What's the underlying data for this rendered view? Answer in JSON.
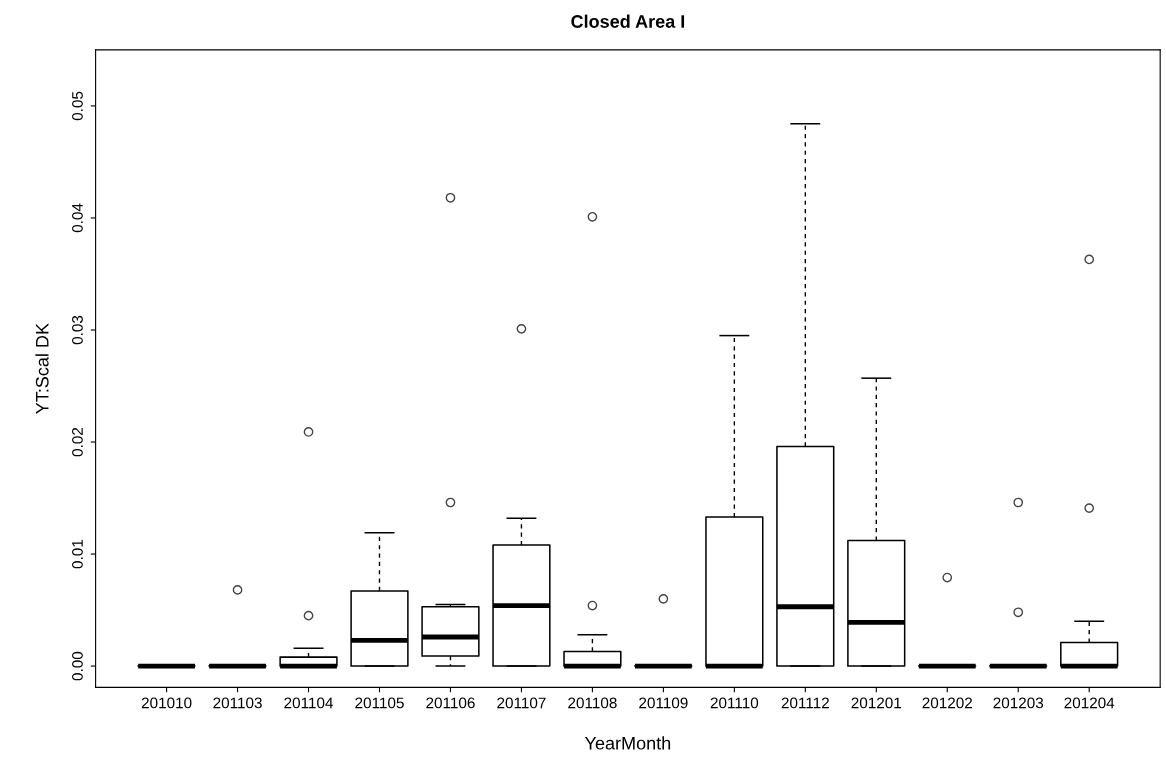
{
  "chart_data": {
    "type": "box",
    "title": "Closed Area I",
    "xlabel": "YearMonth",
    "ylabel": "YT:Scal DK",
    "categories": [
      "201010",
      "201103",
      "201104",
      "201105",
      "201106",
      "201107",
      "201108",
      "201109",
      "201110",
      "201112",
      "201201",
      "201202",
      "201203",
      "201204"
    ],
    "boxes": [
      {
        "low": 0,
        "q1": 0,
        "median": 0,
        "q3": 0,
        "high": 0
      },
      {
        "low": 0,
        "q1": 0,
        "median": 0,
        "q3": 0,
        "high": 0,
        "outliers": [
          0.0068
        ]
      },
      {
        "low": 0,
        "q1": 0,
        "median": 0,
        "q3": 0.0008,
        "high": 0.0016,
        "outliers": [
          0.0045,
          0.0209
        ]
      },
      {
        "low": 0,
        "q1": 0,
        "median": 0.0023,
        "q3": 0.0067,
        "high": 0.0119
      },
      {
        "low": 0,
        "q1": 0.0009,
        "median": 0.0026,
        "q3": 0.0053,
        "high": 0.0055,
        "outliers": [
          0.0146,
          0.0418
        ]
      },
      {
        "low": 0,
        "q1": 0,
        "median": 0.0054,
        "q3": 0.0108,
        "high": 0.0132,
        "outliers": [
          0.0301
        ]
      },
      {
        "low": 0,
        "q1": 0,
        "median": 0,
        "q3": 0.0013,
        "high": 0.0028,
        "outliers": [
          0.0054,
          0.0401
        ]
      },
      {
        "low": 0,
        "q1": 0,
        "median": 0,
        "q3": 0,
        "high": 0,
        "outliers": [
          0.006
        ]
      },
      {
        "low": 0,
        "q1": 0,
        "median": 0,
        "q3": 0.0133,
        "high": 0.0295
      },
      {
        "low": 0,
        "q1": 0,
        "median": 0.0053,
        "q3": 0.0196,
        "high": 0.0484
      },
      {
        "low": 0,
        "q1": 0,
        "median": 0.0039,
        "q3": 0.0112,
        "high": 0.0257
      },
      {
        "low": 0,
        "q1": 0,
        "median": 0,
        "q3": 0,
        "high": 0,
        "outliers": [
          0.0079
        ]
      },
      {
        "low": 0,
        "q1": 0,
        "median": 0,
        "q3": 0,
        "high": 0,
        "outliers": [
          0.0048,
          0.0146
        ]
      },
      {
        "low": 0,
        "q1": 0,
        "median": 0,
        "q3": 0.0021,
        "high": 0.004,
        "outliers": [
          0.0141,
          0.0363
        ]
      }
    ],
    "ylim": [
      -0.0019,
      0.055
    ],
    "yticks": [
      {
        "value": 0,
        "label": "0.00"
      },
      {
        "value": 0.01,
        "label": "0.01"
      },
      {
        "value": 0.02,
        "label": "0.02"
      },
      {
        "value": 0.03,
        "label": "0.03"
      },
      {
        "value": 0.04,
        "label": "0.04"
      },
      {
        "value": 0.05,
        "label": "0.05"
      }
    ],
    "grid": false,
    "legend": false
  }
}
